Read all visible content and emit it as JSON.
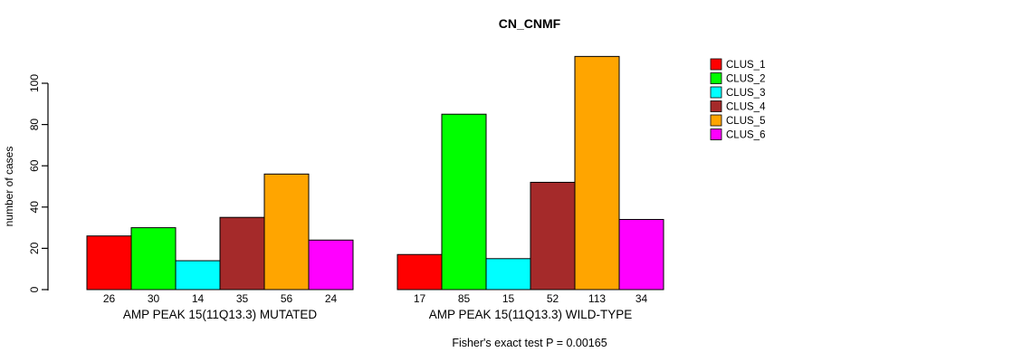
{
  "chart_data": {
    "type": "bar",
    "title": "CN_CNMF",
    "ylabel": "number of cases",
    "xlabel": "",
    "ylim": [
      0,
      100
    ],
    "yticks": [
      0,
      20,
      40,
      60,
      80,
      100
    ],
    "grid": false,
    "legend_position": "right",
    "bar_value_labels_shown": true,
    "categories": [
      "AMP PEAK 15(11Q13.3) MUTATED",
      "AMP PEAK 15(11Q13.3) WILD-TYPE"
    ],
    "series": [
      {
        "name": "CLUS_1",
        "color": "#FF0000",
        "values": [
          26,
          17
        ]
      },
      {
        "name": "CLUS_2",
        "color": "#00FF00",
        "values": [
          30,
          85
        ]
      },
      {
        "name": "CLUS_3",
        "color": "#00FFFF",
        "values": [
          14,
          15
        ]
      },
      {
        "name": "CLUS_4",
        "color": "#A52A2A",
        "values": [
          35,
          52
        ]
      },
      {
        "name": "CLUS_5",
        "color": "#FFA500",
        "values": [
          56,
          113
        ]
      },
      {
        "name": "CLUS_6",
        "color": "#FF00FF",
        "values": [
          24,
          34
        ]
      }
    ],
    "annotation": "Fisher's exact test P = 0.00165",
    "axis_color": "#000000",
    "bar_border_color": "#000000",
    "background_color": "#FFFFFF"
  }
}
